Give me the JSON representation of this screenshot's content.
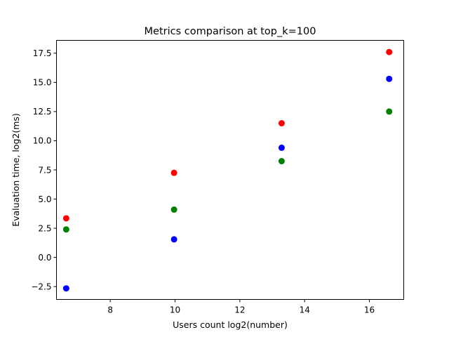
{
  "chart_data": {
    "type": "scatter",
    "title": "Metrics comparison at top_k=100",
    "xlabel": "Users count log2(number)",
    "ylabel": "Evaluation time, log2(ms)",
    "xlim": [
      6.34,
      17.06
    ],
    "ylim": [
      -3.6,
      18.6
    ],
    "xticks": [
      8,
      10,
      12,
      14,
      16
    ],
    "xtick_labels": [
      "8",
      "10",
      "12",
      "14",
      "16"
    ],
    "yticks": [
      -2.5,
      0.0,
      2.5,
      5.0,
      7.5,
      10.0,
      12.5,
      15.0,
      17.5
    ],
    "ytick_labels": [
      "−2.5",
      "0.0",
      "2.5",
      "5.0",
      "7.5",
      "10.0",
      "12.5",
      "15.0",
      "17.5"
    ],
    "x": [
      6.64,
      9.97,
      13.29,
      16.61
    ],
    "series": [
      {
        "color": "#ff0000",
        "values": [
          3.35,
          7.25,
          11.5,
          17.6
        ]
      },
      {
        "color": "#0000ff",
        "values": [
          -2.65,
          1.55,
          9.4,
          15.3
        ]
      },
      {
        "color": "#008000",
        "values": [
          2.4,
          4.1,
          8.25,
          12.5
        ]
      }
    ],
    "grid": false,
    "legend": "none"
  }
}
